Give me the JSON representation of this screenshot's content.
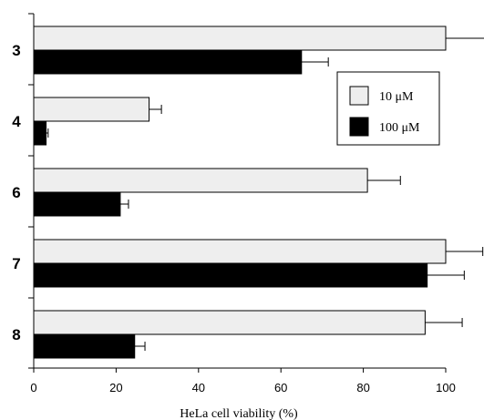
{
  "chart_data": {
    "type": "bar",
    "orientation": "horizontal",
    "categories": [
      "3",
      "4",
      "6",
      "7",
      "8"
    ],
    "series": [
      {
        "name": "10 μM",
        "color": "#eeeeee",
        "values": [
          100,
          28,
          81,
          100,
          95
        ],
        "errors": [
          10,
          3,
          8,
          9,
          9
        ]
      },
      {
        "name": "100 μM",
        "color": "#000000",
        "values": [
          65,
          3,
          21,
          95.5,
          24.5
        ],
        "errors": [
          6.5,
          0.5,
          2,
          9,
          2.5
        ]
      }
    ],
    "xlabel": "HeLa cell viability (%)",
    "ylabel": "",
    "xlim": [
      0,
      100
    ],
    "xticks": [
      "0",
      "20",
      "40",
      "60",
      "80",
      "100"
    ],
    "legend_position": "right-upper",
    "grid": false
  }
}
